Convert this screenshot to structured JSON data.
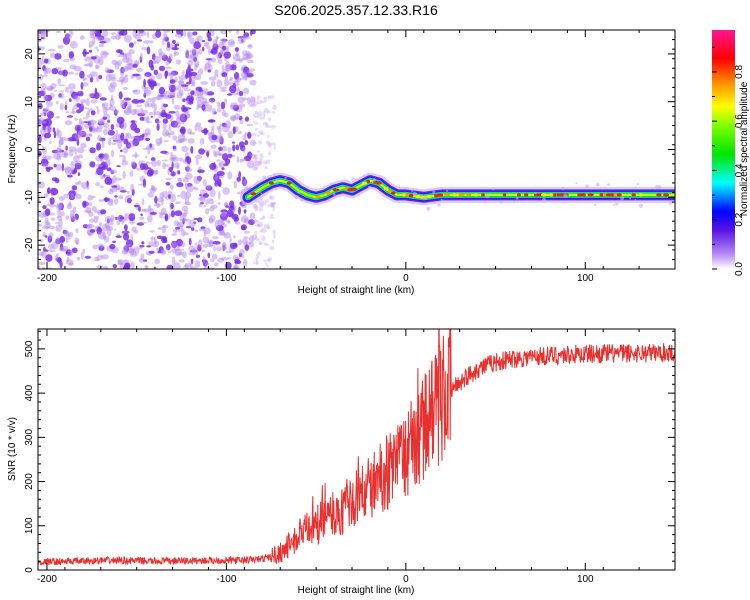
{
  "title": "S206.2025.357.12.33.R16",
  "chart_data": [
    {
      "type": "heatmap",
      "xlabel": "Height of straight line (km)",
      "ylabel": "Frequency (Hz)",
      "xlim": [
        -205,
        150
      ],
      "ylim": [
        -25,
        25
      ],
      "xticks": [
        -200,
        -100,
        0,
        100
      ],
      "yticks": [
        20,
        10,
        0,
        -10,
        -20
      ],
      "noise_region_x": [
        -205,
        -80
      ],
      "signal_track": {
        "x": [
          -88,
          -80,
          -75,
          -70,
          -65,
          -60,
          -55,
          -50,
          -45,
          -40,
          -35,
          -30,
          -25,
          -20,
          -15,
          -10,
          -5,
          0,
          10,
          20,
          30,
          40,
          50,
          60,
          70,
          80,
          90,
          100,
          110,
          120,
          130,
          140,
          150
        ],
        "freq": [
          -10,
          -8,
          -7,
          -6.5,
          -7,
          -8.5,
          -9.5,
          -10,
          -9.5,
          -8.5,
          -8,
          -8.5,
          -7.5,
          -6.5,
          -7,
          -8.5,
          -9.5,
          -9.5,
          -10,
          -9.5,
          -9.5,
          -9.5,
          -9.5,
          -9.5,
          -9.5,
          -9.5,
          -9.5,
          -9.5,
          -9.5,
          -9.5,
          -9.5,
          -9.5,
          -9.5
        ]
      },
      "colorbar": {
        "label": "Normalized spectral amplitude",
        "ticks": [
          "0.0",
          "0.2",
          "0.4",
          "0.6",
          "0.8"
        ],
        "tick_values": [
          0.0,
          0.2,
          0.4,
          0.6,
          0.8
        ],
        "range": [
          0,
          0.97
        ]
      }
    },
    {
      "type": "line",
      "xlabel": "Height of straight line (km)",
      "ylabel": "SNR (10 * v/v)",
      "xlim": [
        -205,
        150
      ],
      "ylim": [
        0,
        545
      ],
      "xticks": [
        -200,
        -100,
        0,
        100
      ],
      "yticks": [
        0,
        100,
        200,
        300,
        400,
        500
      ],
      "color": "#e8302e",
      "series": [
        {
          "name": "SNR",
          "x": [
            -205,
            -180,
            -160,
            -140,
            -120,
            -100,
            -90,
            -80,
            -75,
            -70,
            -65,
            -60,
            -55,
            -50,
            -45,
            -40,
            -35,
            -30,
            -25,
            -20,
            -15,
            -10,
            -5,
            0,
            5,
            10,
            15,
            20,
            25,
            30,
            35,
            40,
            50,
            60,
            70,
            80,
            90,
            100,
            120,
            150
          ],
          "values": [
            18,
            20,
            22,
            20,
            21,
            22,
            22,
            25,
            30,
            40,
            55,
            75,
            90,
            100,
            115,
            125,
            135,
            150,
            170,
            185,
            205,
            225,
            240,
            260,
            290,
            320,
            355,
            385,
            405,
            425,
            440,
            455,
            470,
            478,
            482,
            485,
            487,
            489,
            490,
            492
          ]
        }
      ]
    }
  ]
}
